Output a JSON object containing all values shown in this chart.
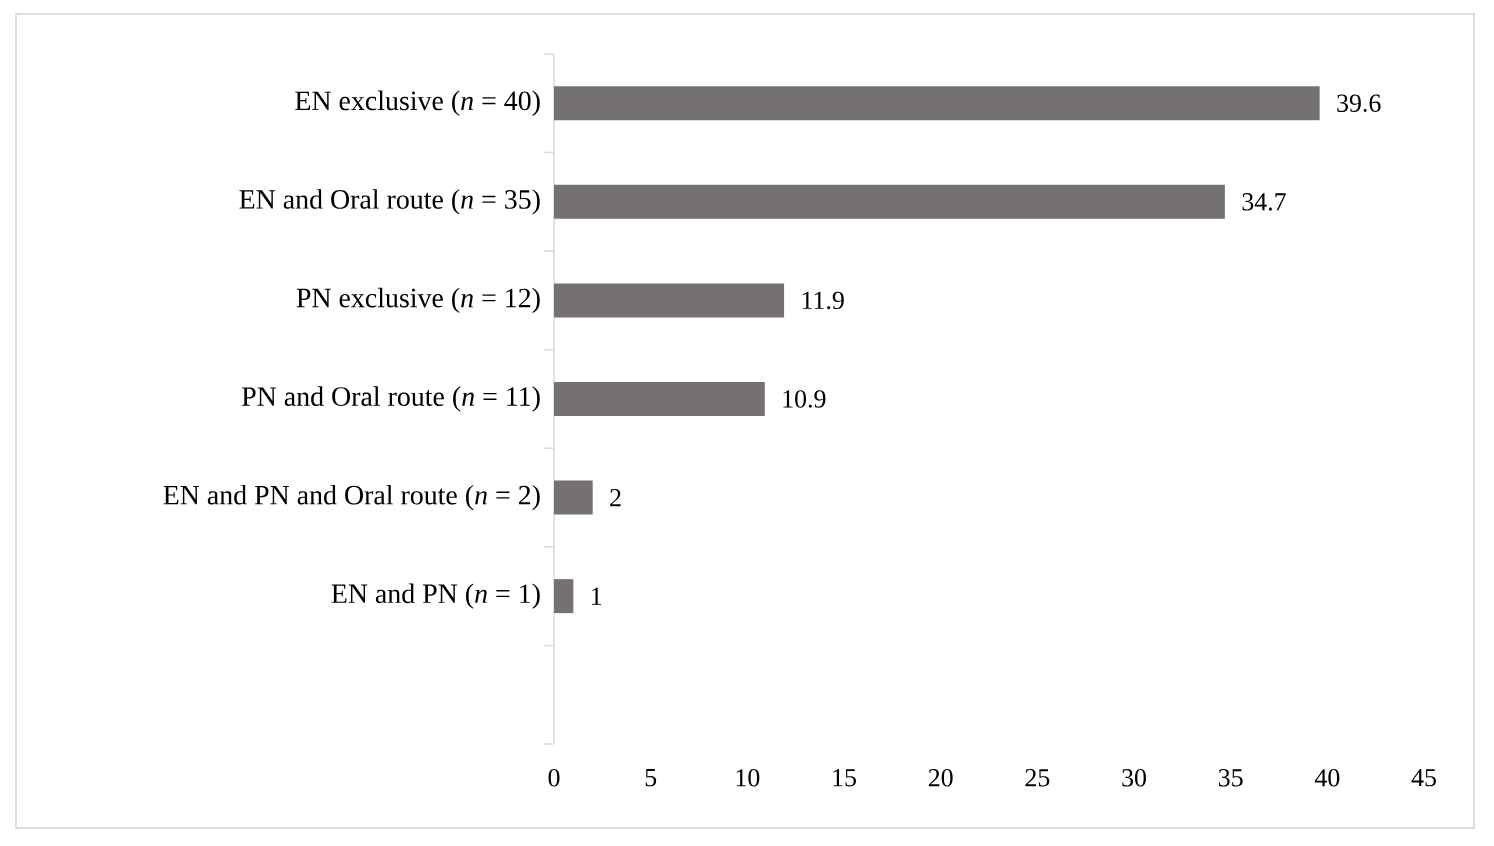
{
  "chart_data": {
    "type": "bar",
    "orientation": "horizontal",
    "categories": [
      "EN exclusive (*n* = 40)",
      "EN and Oral route (*n* = 35)",
      "PN exclusive (*n* = 12)",
      "PN and Oral route (*n* = 11)",
      "EN and PN and Oral route (*n* = 2)",
      "EN and PN (*n* = 1)",
      null
    ],
    "values": [
      39.6,
      34.7,
      11.9,
      10.9,
      2,
      1,
      null
    ],
    "color": "#767171",
    "xlim": [
      0,
      45
    ],
    "xticks": [
      0,
      5,
      10,
      15,
      20,
      25,
      30,
      35,
      40,
      45
    ],
    "data_labels": true
  }
}
